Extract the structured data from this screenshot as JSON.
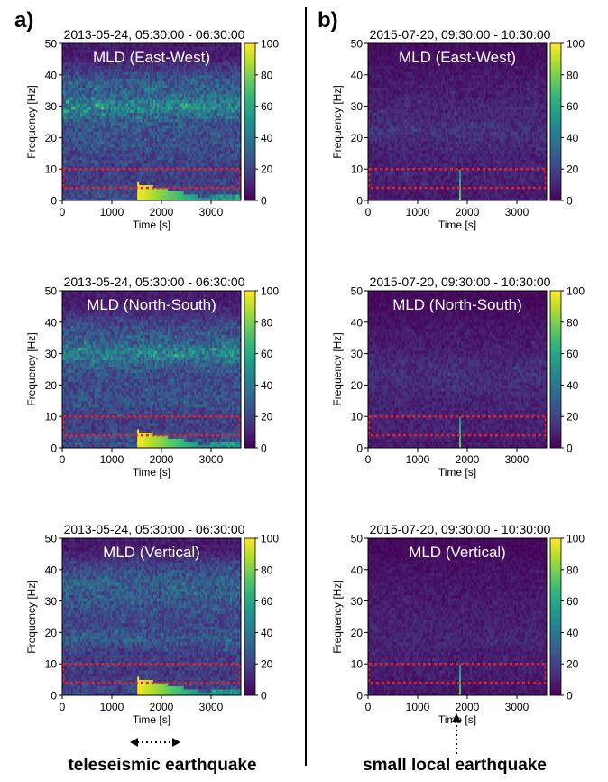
{
  "panel_labels": [
    "a)",
    "b)"
  ],
  "annotations": {
    "left": "teleseismic earthquake",
    "right": "small local earthquake"
  },
  "colorbar": {
    "ticks": [
      0,
      20,
      40,
      60,
      80,
      100
    ],
    "min": 0,
    "max": 100,
    "colormap": "viridis"
  },
  "colors": {
    "highlight_box": "#e8202a",
    "divider": "#000000",
    "background_low": "#440154",
    "background_high": "#fde725"
  },
  "chart_data": [
    {
      "type": "heatmap",
      "panel": "a",
      "title": "2013-05-24, 05:30:00 - 06:30:00",
      "label": "MLD (East-West)",
      "xlabel": "Time [s]",
      "ylabel": "Frequency [Hz]",
      "xlim": [
        0,
        3600
      ],
      "ylim": [
        0,
        50
      ],
      "xticks": [
        0,
        1000,
        2000,
        3000
      ],
      "yticks": [
        0,
        10,
        20,
        30,
        40,
        50
      ],
      "highlight_band_hz": [
        4,
        10
      ],
      "event": {
        "kind": "teleseismic",
        "onset_s": 1500,
        "decay_end_s": 3000,
        "max_freq_hz": 5
      },
      "band_intensity": [
        {
          "freq_hz": 2,
          "level": 28
        },
        {
          "freq_hz": 6,
          "level": 22
        },
        {
          "freq_hz": 10,
          "level": 24
        },
        {
          "freq_hz": 14,
          "level": 26
        },
        {
          "freq_hz": 18,
          "level": 30
        },
        {
          "freq_hz": 22,
          "level": 30
        },
        {
          "freq_hz": 26,
          "level": 36
        },
        {
          "freq_hz": 30,
          "level": 55
        },
        {
          "freq_hz": 34,
          "level": 38
        },
        {
          "freq_hz": 38,
          "level": 34
        },
        {
          "freq_hz": 42,
          "level": 22
        },
        {
          "freq_hz": 46,
          "level": 12
        }
      ]
    },
    {
      "type": "heatmap",
      "panel": "b",
      "title": "2015-07-20, 09:30:00 - 10:30:00",
      "label": "MLD (East-West)",
      "xlabel": "Time [s]",
      "ylabel": "Frequency [Hz]",
      "xlim": [
        0,
        3600
      ],
      "ylim": [
        0,
        50
      ],
      "xticks": [
        0,
        1000,
        2000,
        3000
      ],
      "yticks": [
        0,
        10,
        20,
        30,
        40,
        50
      ],
      "highlight_band_hz": [
        4,
        10
      ],
      "event": {
        "kind": "local",
        "onset_s": 1850,
        "max_freq_hz": 10
      },
      "band_intensity": [
        {
          "freq_hz": 2,
          "level": 12
        },
        {
          "freq_hz": 6,
          "level": 14
        },
        {
          "freq_hz": 10,
          "level": 14
        },
        {
          "freq_hz": 14,
          "level": 14
        },
        {
          "freq_hz": 18,
          "level": 16
        },
        {
          "freq_hz": 22,
          "level": 20
        },
        {
          "freq_hz": 26,
          "level": 16
        },
        {
          "freq_hz": 30,
          "level": 15
        },
        {
          "freq_hz": 34,
          "level": 13
        },
        {
          "freq_hz": 38,
          "level": 12
        },
        {
          "freq_hz": 42,
          "level": 10
        },
        {
          "freq_hz": 46,
          "level": 8
        }
      ]
    },
    {
      "type": "heatmap",
      "panel": "a",
      "title": "2013-05-24, 05:30:00 - 06:30:00",
      "label": "MLD (North-South)",
      "xlabel": "Time [s]",
      "ylabel": "Frequency [Hz]",
      "xlim": [
        0,
        3600
      ],
      "ylim": [
        0,
        50
      ],
      "xticks": [
        0,
        1000,
        2000,
        3000
      ],
      "yticks": [
        0,
        10,
        20,
        30,
        40,
        50
      ],
      "highlight_band_hz": [
        4,
        10
      ],
      "event": {
        "kind": "teleseismic",
        "onset_s": 1500,
        "decay_end_s": 3000,
        "max_freq_hz": 5
      },
      "band_intensity": [
        {
          "freq_hz": 2,
          "level": 30
        },
        {
          "freq_hz": 6,
          "level": 24
        },
        {
          "freq_hz": 10,
          "level": 24
        },
        {
          "freq_hz": 14,
          "level": 30
        },
        {
          "freq_hz": 18,
          "level": 30
        },
        {
          "freq_hz": 22,
          "level": 28
        },
        {
          "freq_hz": 26,
          "level": 34
        },
        {
          "freq_hz": 30,
          "level": 52
        },
        {
          "freq_hz": 34,
          "level": 36
        },
        {
          "freq_hz": 38,
          "level": 30
        },
        {
          "freq_hz": 42,
          "level": 20
        },
        {
          "freq_hz": 46,
          "level": 12
        }
      ]
    },
    {
      "type": "heatmap",
      "panel": "b",
      "title": "2015-07-20, 09:30:00 - 10:30:00",
      "label": "MLD (North-South)",
      "xlabel": "Time [s]",
      "ylabel": "Frequency [Hz]",
      "xlim": [
        0,
        3600
      ],
      "ylim": [
        0,
        50
      ],
      "xticks": [
        0,
        1000,
        2000,
        3000
      ],
      "yticks": [
        0,
        10,
        20,
        30,
        40,
        50
      ],
      "highlight_band_hz": [
        4,
        10
      ],
      "event": {
        "kind": "local",
        "onset_s": 1850,
        "max_freq_hz": 10
      },
      "band_intensity": [
        {
          "freq_hz": 2,
          "level": 12
        },
        {
          "freq_hz": 6,
          "level": 14
        },
        {
          "freq_hz": 10,
          "level": 14
        },
        {
          "freq_hz": 14,
          "level": 14
        },
        {
          "freq_hz": 18,
          "level": 16
        },
        {
          "freq_hz": 22,
          "level": 18
        },
        {
          "freq_hz": 26,
          "level": 17
        },
        {
          "freq_hz": 30,
          "level": 14
        },
        {
          "freq_hz": 34,
          "level": 12
        },
        {
          "freq_hz": 38,
          "level": 11
        },
        {
          "freq_hz": 42,
          "level": 9
        },
        {
          "freq_hz": 46,
          "level": 7
        }
      ]
    },
    {
      "type": "heatmap",
      "panel": "a",
      "title": "2013-05-24, 05:30:00 - 06:30:00",
      "label": "MLD (Vertical)",
      "xlabel": "Time [s]",
      "ylabel": "Frequency [Hz]",
      "xlim": [
        0,
        3600
      ],
      "ylim": [
        0,
        50
      ],
      "xticks": [
        0,
        1000,
        2000,
        3000
      ],
      "yticks": [
        0,
        10,
        20,
        30,
        40,
        50
      ],
      "highlight_band_hz": [
        4,
        10
      ],
      "event": {
        "kind": "teleseismic",
        "onset_s": 1500,
        "decay_end_s": 3000,
        "max_freq_hz": 5
      },
      "band_intensity": [
        {
          "freq_hz": 2,
          "level": 26
        },
        {
          "freq_hz": 6,
          "level": 22
        },
        {
          "freq_hz": 10,
          "level": 22
        },
        {
          "freq_hz": 14,
          "level": 24
        },
        {
          "freq_hz": 18,
          "level": 34
        },
        {
          "freq_hz": 22,
          "level": 26
        },
        {
          "freq_hz": 26,
          "level": 28
        },
        {
          "freq_hz": 30,
          "level": 32
        },
        {
          "freq_hz": 34,
          "level": 36
        },
        {
          "freq_hz": 38,
          "level": 34
        },
        {
          "freq_hz": 42,
          "level": 24
        },
        {
          "freq_hz": 46,
          "level": 12
        }
      ]
    },
    {
      "type": "heatmap",
      "panel": "b",
      "title": "2015-07-20, 09:30:00 - 10:30:00",
      "label": "MLD (Vertical)",
      "xlabel": "Time [s]",
      "ylabel": "Frequency [Hz]",
      "xlim": [
        0,
        3600
      ],
      "ylim": [
        0,
        50
      ],
      "xticks": [
        0,
        1000,
        2000,
        3000
      ],
      "yticks": [
        0,
        10,
        20,
        30,
        40,
        50
      ],
      "highlight_band_hz": [
        4,
        10
      ],
      "event": {
        "kind": "local",
        "onset_s": 1850,
        "max_freq_hz": 10
      },
      "band_intensity": [
        {
          "freq_hz": 2,
          "level": 11
        },
        {
          "freq_hz": 6,
          "level": 12
        },
        {
          "freq_hz": 10,
          "level": 13
        },
        {
          "freq_hz": 14,
          "level": 13
        },
        {
          "freq_hz": 18,
          "level": 15
        },
        {
          "freq_hz": 22,
          "level": 14
        },
        {
          "freq_hz": 26,
          "level": 13
        },
        {
          "freq_hz": 30,
          "level": 12
        },
        {
          "freq_hz": 34,
          "level": 11
        },
        {
          "freq_hz": 38,
          "level": 10
        },
        {
          "freq_hz": 42,
          "level": 9
        },
        {
          "freq_hz": 46,
          "level": 7
        }
      ]
    }
  ]
}
